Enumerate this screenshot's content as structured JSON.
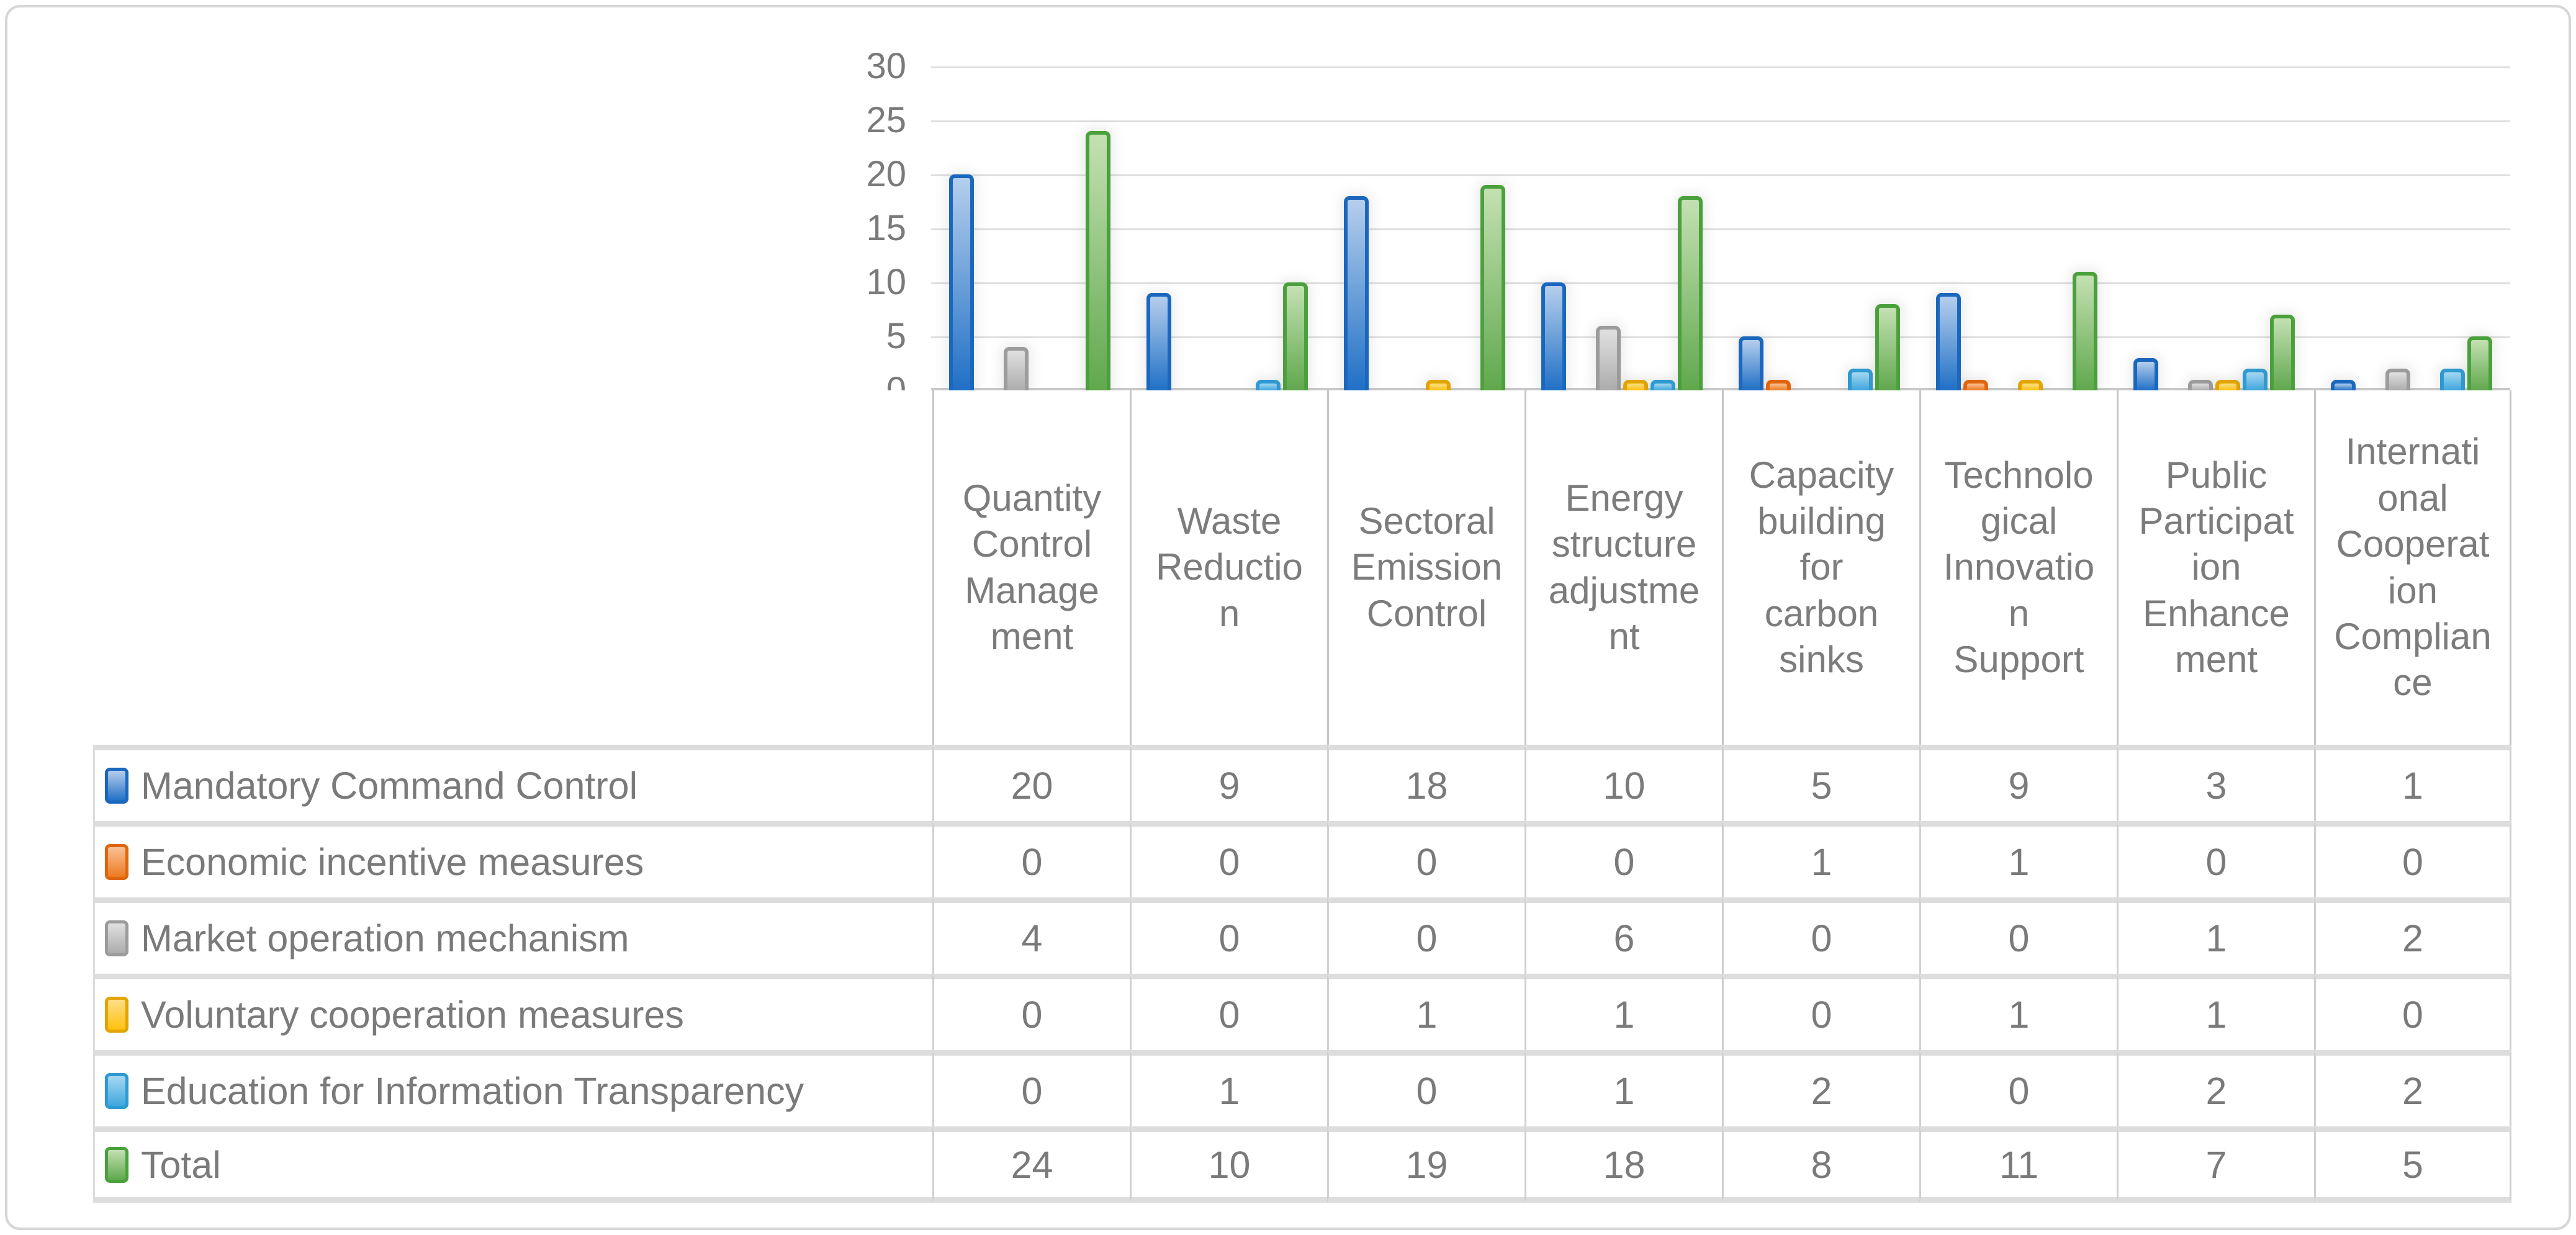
{
  "figure": {
    "background_color": "#FFFFFF",
    "frame_border_color": "#D6D6D6",
    "text_color": "#7A7A7A",
    "gridline_color": "#DEDEDE"
  },
  "chart_data": {
    "type": "bar",
    "title": "",
    "xlabel": "",
    "ylabel": "",
    "ylim": [
      0,
      30
    ],
    "y_ticks": [
      30,
      25,
      20,
      15,
      10,
      5,
      0
    ],
    "grid": true,
    "legend_position": "table-rows-left",
    "categories": [
      "Quantity Control Management",
      "Waste Reduction",
      "Sectoral Emission Control",
      "Energy structure adjustment",
      "Capacity building for carbon sinks",
      "Technological Innovation Support",
      "Public Participation Enhancement",
      "International Cooperation Compliance"
    ],
    "categories_display": [
      "Quantity\nControl\nManage\nment",
      "Waste\nReductio\nn",
      "Sectoral\nEmission\nControl",
      "Energy\nstructure\nadjustme\nnt",
      "Capacity\nbuilding\nfor\ncarbon\nsinks",
      "Technolo\ngical\nInnovatio\nn\nSupport",
      "Public\nParticipat\nion\nEnhance\nment",
      "Internati\nonal\nCooperat\nion\nComplian\nce"
    ],
    "series": [
      {
        "name": "Mandatory Command Control",
        "values": [
          20,
          9,
          18,
          10,
          5,
          9,
          3,
          1
        ],
        "color_main": "#2070C6",
        "color_light": "#B5CEEC",
        "color_border": "#1B67BE"
      },
      {
        "name": "Economic incentive measures",
        "values": [
          0,
          0,
          0,
          0,
          1,
          1,
          0,
          0
        ],
        "color_main": "#EC7A20",
        "color_light": "#FAC196",
        "color_border": "#E0660E"
      },
      {
        "name": "Market operation mechanism",
        "values": [
          4,
          0,
          0,
          6,
          0,
          0,
          1,
          2
        ],
        "color_main": "#ACACAC",
        "color_light": "#E0E0E0",
        "color_border": "#9C9C9C"
      },
      {
        "name": "Voluntary cooperation measures",
        "values": [
          0,
          0,
          1,
          1,
          0,
          1,
          1,
          0
        ],
        "color_main": "#FFC110",
        "color_light": "#FFDF86",
        "color_border": "#E2A500"
      },
      {
        "name": "Education for Information Transparency",
        "values": [
          0,
          1,
          0,
          1,
          2,
          0,
          2,
          2
        ],
        "color_main": "#3FA7DE",
        "color_light": "#A5D8F2",
        "color_border": "#2E9AD2"
      },
      {
        "name": "Total",
        "values": [
          24,
          10,
          19,
          18,
          8,
          11,
          7,
          5
        ],
        "color_main": "#60A84E",
        "color_light": "#C4E0B2",
        "color_border": "#4AA13C"
      }
    ]
  }
}
